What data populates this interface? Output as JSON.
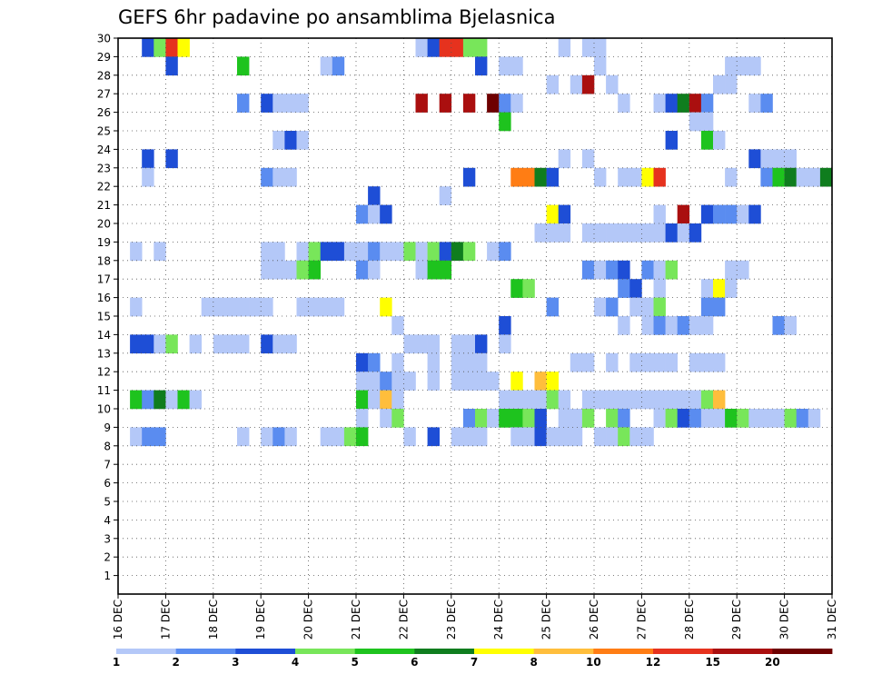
{
  "chart_data": {
    "type": "heatmap",
    "title": "GEFS 6hr padavine po ansamblima Bjelasnica",
    "xlabel": "",
    "ylabel": "",
    "x_ticks": [
      "16 DEC",
      "17 DEC",
      "18 DEC",
      "19 DEC",
      "20 DEC",
      "21 DEC",
      "22 DEC",
      "23 DEC",
      "24 DEC",
      "25 DEC",
      "26 DEC",
      "27 DEC",
      "28 DEC",
      "29 DEC",
      "30 DEC",
      "31 DEC"
    ],
    "y_ticks": [
      1,
      2,
      3,
      4,
      5,
      6,
      7,
      8,
      9,
      10,
      11,
      12,
      13,
      14,
      15,
      16,
      17,
      18,
      19,
      20,
      21,
      22,
      23,
      24,
      25,
      26,
      27,
      28,
      29,
      30
    ],
    "x_range_days": [
      16,
      31
    ],
    "y_range": [
      0,
      30
    ],
    "time_step_hours": 6,
    "grid": true,
    "colorbar": {
      "labels": [
        "1",
        "2",
        "3",
        "4",
        "5",
        "6",
        "7",
        "8",
        "10",
        "12",
        "15",
        "20"
      ],
      "colors": [
        "#b4c8f8",
        "#5a8cf0",
        "#1e4ed6",
        "#78e65a",
        "#1ec31e",
        "#0f7d1e",
        "#ffff00",
        "#ffbe3c",
        "#ff7d14",
        "#e6321e",
        "#aa0f0f",
        "#6e0000"
      ]
    },
    "cells": [
      [
        0.5,
        30,
        2
      ],
      [
        0.75,
        30,
        3
      ],
      [
        1.0,
        30,
        9
      ],
      [
        1.25,
        30,
        6
      ],
      [
        6.25,
        30,
        0
      ],
      [
        6.5,
        30,
        2
      ],
      [
        6.75,
        30,
        9
      ],
      [
        7.0,
        30,
        9
      ],
      [
        7.25,
        30,
        3
      ],
      [
        7.5,
        30,
        3
      ],
      [
        9.25,
        30,
        0
      ],
      [
        9.75,
        30,
        0
      ],
      [
        10.0,
        30,
        0
      ],
      [
        1.0,
        29,
        2
      ],
      [
        2.5,
        29,
        4
      ],
      [
        4.25,
        29,
        0
      ],
      [
        4.5,
        29,
        1
      ],
      [
        7.5,
        29,
        2
      ],
      [
        8.0,
        29,
        0
      ],
      [
        8.25,
        29,
        0
      ],
      [
        10.0,
        29,
        0
      ],
      [
        12.75,
        29,
        0
      ],
      [
        13.0,
        29,
        0
      ],
      [
        13.25,
        29,
        0
      ],
      [
        9.0,
        28,
        0
      ],
      [
        9.5,
        28,
        0
      ],
      [
        9.75,
        28,
        10
      ],
      [
        10.25,
        28,
        0
      ],
      [
        12.5,
        28,
        0
      ],
      [
        12.75,
        28,
        0
      ],
      [
        2.5,
        27,
        1
      ],
      [
        3.0,
        27,
        2
      ],
      [
        3.25,
        27,
        0
      ],
      [
        3.5,
        27,
        0
      ],
      [
        3.75,
        27,
        0
      ],
      [
        6.25,
        27,
        10
      ],
      [
        6.75,
        27,
        10
      ],
      [
        7.25,
        27,
        10
      ],
      [
        7.75,
        27,
        11
      ],
      [
        8.0,
        27,
        1
      ],
      [
        8.25,
        27,
        0
      ],
      [
        10.5,
        27,
        0
      ],
      [
        11.25,
        27,
        0
      ],
      [
        11.5,
        27,
        2
      ],
      [
        11.75,
        27,
        5
      ],
      [
        12.0,
        27,
        10
      ],
      [
        12.25,
        27,
        1
      ],
      [
        13.25,
        27,
        0
      ],
      [
        13.5,
        27,
        1
      ],
      [
        8.0,
        26,
        4
      ],
      [
        12.0,
        26,
        0
      ],
      [
        12.25,
        26,
        0
      ],
      [
        3.25,
        25,
        0
      ],
      [
        3.5,
        25,
        2
      ],
      [
        3.75,
        25,
        0
      ],
      [
        11.5,
        25,
        2
      ],
      [
        12.25,
        25,
        4
      ],
      [
        12.5,
        25,
        0
      ],
      [
        0.5,
        24,
        2
      ],
      [
        1.0,
        24,
        2
      ],
      [
        9.25,
        24,
        0
      ],
      [
        9.75,
        24,
        0
      ],
      [
        13.25,
        24,
        2
      ],
      [
        13.5,
        24,
        0
      ],
      [
        13.75,
        24,
        0
      ],
      [
        14.0,
        24,
        0
      ],
      [
        0.5,
        23,
        0
      ],
      [
        3.0,
        23,
        1
      ],
      [
        3.25,
        23,
        0
      ],
      [
        3.5,
        23,
        0
      ],
      [
        7.25,
        23,
        2
      ],
      [
        8.25,
        23,
        8
      ],
      [
        8.5,
        23,
        8
      ],
      [
        8.75,
        23,
        5
      ],
      [
        9.0,
        23,
        2
      ],
      [
        10.0,
        23,
        0
      ],
      [
        10.5,
        23,
        0
      ],
      [
        10.75,
        23,
        0
      ],
      [
        11.0,
        23,
        6
      ],
      [
        11.25,
        23,
        9
      ],
      [
        12.75,
        23,
        0
      ],
      [
        13.5,
        23,
        1
      ],
      [
        13.75,
        23,
        4
      ],
      [
        14.0,
        23,
        5
      ],
      [
        14.25,
        23,
        0
      ],
      [
        14.5,
        23,
        0
      ],
      [
        14.75,
        23,
        5
      ],
      [
        5.25,
        22,
        2
      ],
      [
        6.75,
        22,
        0
      ],
      [
        5.0,
        21,
        1
      ],
      [
        5.25,
        21,
        0
      ],
      [
        5.5,
        21,
        2
      ],
      [
        9.0,
        21,
        6
      ],
      [
        9.25,
        21,
        2
      ],
      [
        11.25,
        21,
        0
      ],
      [
        11.75,
        21,
        10
      ],
      [
        12.25,
        21,
        2
      ],
      [
        12.5,
        21,
        1
      ],
      [
        12.75,
        21,
        1
      ],
      [
        13.0,
        21,
        0
      ],
      [
        13.25,
        21,
        2
      ],
      [
        8.75,
        20,
        0
      ],
      [
        9.0,
        20,
        0
      ],
      [
        9.25,
        20,
        0
      ],
      [
        9.75,
        20,
        0
      ],
      [
        10.0,
        20,
        0
      ],
      [
        10.25,
        20,
        0
      ],
      [
        10.5,
        20,
        0
      ],
      [
        10.75,
        20,
        0
      ],
      [
        11.0,
        20,
        0
      ],
      [
        11.25,
        20,
        0
      ],
      [
        11.5,
        20,
        2
      ],
      [
        11.75,
        20,
        0
      ],
      [
        12.0,
        20,
        2
      ],
      [
        0.25,
        19,
        0
      ],
      [
        0.75,
        19,
        0
      ],
      [
        3.0,
        19,
        0
      ],
      [
        3.25,
        19,
        0
      ],
      [
        3.75,
        19,
        0
      ],
      [
        4.0,
        19,
        3
      ],
      [
        4.25,
        19,
        2
      ],
      [
        4.5,
        19,
        2
      ],
      [
        4.75,
        19,
        0
      ],
      [
        5.0,
        19,
        0
      ],
      [
        5.25,
        19,
        1
      ],
      [
        5.5,
        19,
        0
      ],
      [
        5.75,
        19,
        0
      ],
      [
        6.0,
        19,
        3
      ],
      [
        6.25,
        19,
        0
      ],
      [
        6.5,
        19,
        3
      ],
      [
        6.75,
        19,
        2
      ],
      [
        7.0,
        19,
        5
      ],
      [
        7.25,
        19,
        3
      ],
      [
        7.75,
        19,
        0
      ],
      [
        8.0,
        19,
        1
      ],
      [
        3.0,
        18,
        0
      ],
      [
        3.25,
        18,
        0
      ],
      [
        3.5,
        18,
        0
      ],
      [
        3.75,
        18,
        3
      ],
      [
        4.0,
        18,
        4
      ],
      [
        5.0,
        18,
        1
      ],
      [
        5.25,
        18,
        0
      ],
      [
        6.25,
        18,
        0
      ],
      [
        6.5,
        18,
        4
      ],
      [
        6.75,
        18,
        4
      ],
      [
        9.75,
        18,
        1
      ],
      [
        10.0,
        18,
        0
      ],
      [
        10.25,
        18,
        1
      ],
      [
        10.5,
        18,
        2
      ],
      [
        11.0,
        18,
        1
      ],
      [
        11.25,
        18,
        0
      ],
      [
        11.5,
        18,
        3
      ],
      [
        12.75,
        18,
        0
      ],
      [
        13.0,
        18,
        0
      ],
      [
        8.25,
        17,
        4
      ],
      [
        8.5,
        17,
        3
      ],
      [
        10.5,
        17,
        1
      ],
      [
        10.75,
        17,
        2
      ],
      [
        11.25,
        17,
        0
      ],
      [
        12.25,
        17,
        0
      ],
      [
        12.5,
        17,
        6
      ],
      [
        12.75,
        17,
        0
      ],
      [
        0.25,
        16,
        0
      ],
      [
        1.75,
        16,
        0
      ],
      [
        2.0,
        16,
        0
      ],
      [
        2.25,
        16,
        0
      ],
      [
        2.5,
        16,
        0
      ],
      [
        2.75,
        16,
        0
      ],
      [
        3.0,
        16,
        0
      ],
      [
        3.75,
        16,
        0
      ],
      [
        4.0,
        16,
        0
      ],
      [
        4.25,
        16,
        0
      ],
      [
        4.5,
        16,
        0
      ],
      [
        5.5,
        16,
        6
      ],
      [
        9.0,
        16,
        1
      ],
      [
        10.0,
        16,
        0
      ],
      [
        10.25,
        16,
        1
      ],
      [
        10.75,
        16,
        0
      ],
      [
        11.0,
        16,
        0
      ],
      [
        11.25,
        16,
        3
      ],
      [
        12.25,
        16,
        1
      ],
      [
        12.5,
        16,
        1
      ],
      [
        5.75,
        15,
        0
      ],
      [
        8.0,
        15,
        2
      ],
      [
        10.5,
        15,
        0
      ],
      [
        11.0,
        15,
        0
      ],
      [
        11.25,
        15,
        1
      ],
      [
        11.5,
        15,
        0
      ],
      [
        11.75,
        15,
        1
      ],
      [
        12.0,
        15,
        0
      ],
      [
        12.25,
        15,
        0
      ],
      [
        13.75,
        15,
        1
      ],
      [
        14.0,
        15,
        0
      ],
      [
        0.25,
        14,
        2
      ],
      [
        0.5,
        14,
        2
      ],
      [
        0.75,
        14,
        0
      ],
      [
        1.0,
        14,
        3
      ],
      [
        1.5,
        14,
        0
      ],
      [
        2.0,
        14,
        0
      ],
      [
        2.25,
        14,
        0
      ],
      [
        2.5,
        14,
        0
      ],
      [
        3.0,
        14,
        2
      ],
      [
        3.25,
        14,
        0
      ],
      [
        3.5,
        14,
        0
      ],
      [
        6.0,
        14,
        0
      ],
      [
        6.25,
        14,
        0
      ],
      [
        6.5,
        14,
        0
      ],
      [
        7.0,
        14,
        0
      ],
      [
        7.25,
        14,
        0
      ],
      [
        7.5,
        14,
        2
      ],
      [
        8.0,
        14,
        0
      ],
      [
        5.0,
        13,
        2
      ],
      [
        5.25,
        13,
        1
      ],
      [
        5.75,
        13,
        0
      ],
      [
        6.5,
        13,
        0
      ],
      [
        7.0,
        13,
        0
      ],
      [
        7.25,
        13,
        0
      ],
      [
        7.5,
        13,
        0
      ],
      [
        9.5,
        13,
        0
      ],
      [
        9.75,
        13,
        0
      ],
      [
        10.25,
        13,
        0
      ],
      [
        10.75,
        13,
        0
      ],
      [
        11.0,
        13,
        0
      ],
      [
        11.25,
        13,
        0
      ],
      [
        11.5,
        13,
        0
      ],
      [
        12.0,
        13,
        0
      ],
      [
        12.25,
        13,
        0
      ],
      [
        12.5,
        13,
        0
      ],
      [
        5.0,
        12,
        0
      ],
      [
        5.25,
        12,
        0
      ],
      [
        5.5,
        12,
        1
      ],
      [
        5.75,
        12,
        0
      ],
      [
        6.0,
        12,
        0
      ],
      [
        6.5,
        12,
        0
      ],
      [
        7.0,
        12,
        0
      ],
      [
        7.25,
        12,
        0
      ],
      [
        7.5,
        12,
        0
      ],
      [
        7.75,
        12,
        0
      ],
      [
        8.25,
        12,
        6
      ],
      [
        8.75,
        12,
        7
      ],
      [
        9.0,
        12,
        6
      ],
      [
        0.25,
        11,
        4
      ],
      [
        0.5,
        11,
        1
      ],
      [
        0.75,
        11,
        5
      ],
      [
        1.0,
        11,
        0
      ],
      [
        1.25,
        11,
        4
      ],
      [
        1.5,
        11,
        0
      ],
      [
        5.0,
        11,
        4
      ],
      [
        5.25,
        11,
        0
      ],
      [
        5.5,
        11,
        7
      ],
      [
        5.75,
        11,
        0
      ],
      [
        8.0,
        11,
        0
      ],
      [
        8.25,
        11,
        0
      ],
      [
        8.5,
        11,
        0
      ],
      [
        8.75,
        11,
        0
      ],
      [
        9.0,
        11,
        3
      ],
      [
        9.25,
        11,
        0
      ],
      [
        9.75,
        11,
        0
      ],
      [
        10.0,
        11,
        0
      ],
      [
        10.25,
        11,
        0
      ],
      [
        10.5,
        11,
        0
      ],
      [
        10.75,
        11,
        0
      ],
      [
        11.0,
        11,
        0
      ],
      [
        11.25,
        11,
        0
      ],
      [
        11.5,
        11,
        0
      ],
      [
        11.75,
        11,
        0
      ],
      [
        12.0,
        11,
        0
      ],
      [
        12.25,
        11,
        3
      ],
      [
        12.5,
        11,
        7
      ],
      [
        5.0,
        10,
        0
      ],
      [
        5.5,
        10,
        0
      ],
      [
        5.75,
        10,
        3
      ],
      [
        7.25,
        10,
        1
      ],
      [
        7.5,
        10,
        3
      ],
      [
        7.75,
        10,
        0
      ],
      [
        8.0,
        10,
        4
      ],
      [
        8.25,
        10,
        4
      ],
      [
        8.5,
        10,
        3
      ],
      [
        8.75,
        10,
        2
      ],
      [
        9.25,
        10,
        0
      ],
      [
        9.5,
        10,
        0
      ],
      [
        9.75,
        10,
        3
      ],
      [
        10.25,
        10,
        3
      ],
      [
        10.5,
        10,
        1
      ],
      [
        11.25,
        10,
        0
      ],
      [
        11.5,
        10,
        3
      ],
      [
        11.75,
        10,
        2
      ],
      [
        12.0,
        10,
        1
      ],
      [
        12.25,
        10,
        0
      ],
      [
        12.5,
        10,
        0
      ],
      [
        12.75,
        10,
        4
      ],
      [
        13.0,
        10,
        3
      ],
      [
        13.25,
        10,
        0
      ],
      [
        13.5,
        10,
        0
      ],
      [
        13.75,
        10,
        0
      ],
      [
        14.0,
        10,
        3
      ],
      [
        14.25,
        10,
        1
      ],
      [
        14.5,
        10,
        0
      ],
      [
        0.25,
        9,
        0
      ],
      [
        0.5,
        9,
        1
      ],
      [
        0.75,
        9,
        1
      ],
      [
        2.5,
        9,
        0
      ],
      [
        3.0,
        9,
        0
      ],
      [
        3.25,
        9,
        1
      ],
      [
        3.5,
        9,
        0
      ],
      [
        4.25,
        9,
        0
      ],
      [
        4.5,
        9,
        0
      ],
      [
        4.75,
        9,
        3
      ],
      [
        5.0,
        9,
        4
      ],
      [
        6.0,
        9,
        0
      ],
      [
        6.5,
        9,
        2
      ],
      [
        7.0,
        9,
        0
      ],
      [
        7.25,
        9,
        0
      ],
      [
        7.5,
        9,
        0
      ],
      [
        8.25,
        9,
        0
      ],
      [
        8.5,
        9,
        0
      ],
      [
        8.75,
        9,
        2
      ],
      [
        9.0,
        9,
        0
      ],
      [
        9.25,
        9,
        0
      ],
      [
        9.5,
        9,
        0
      ],
      [
        10.0,
        9,
        0
      ],
      [
        10.25,
        9,
        0
      ],
      [
        10.5,
        9,
        3
      ],
      [
        10.75,
        9,
        0
      ],
      [
        11.0,
        9,
        0
      ]
    ]
  }
}
